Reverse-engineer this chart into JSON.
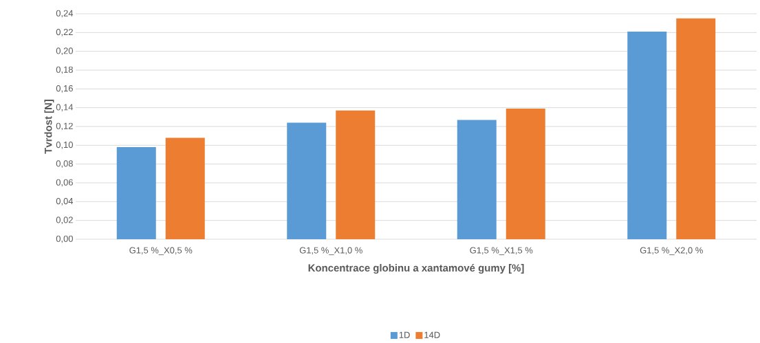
{
  "chart_data": {
    "type": "bar",
    "xlabel": "**Koncentrace globinu a xantamové gumy [**%**]**",
    "ylabel": "Tvrdost [N]",
    "categories": [
      "G1,5 %_X0,5 %",
      "G1,5 %_X1,0 %",
      "G1,5 %_X1,5 %",
      "G1,5 %_X2,0 %"
    ],
    "series": [
      {
        "name": "1D",
        "color": "#5b9bd5",
        "values": [
          0.098,
          0.124,
          0.127,
          0.221
        ]
      },
      {
        "name": "14D",
        "color": "#ed7d31",
        "values": [
          0.108,
          0.137,
          0.139,
          0.235
        ]
      }
    ],
    "ylim": [
      0,
      0.24
    ],
    "yticks": [
      {
        "value": 0,
        "label": "0,00"
      },
      {
        "value": 0.02,
        "label": "0,02"
      },
      {
        "value": 0.04,
        "label": "0,04"
      },
      {
        "value": 0.06,
        "label": "0,06"
      },
      {
        "value": 0.08,
        "label": "0,08"
      },
      {
        "value": 0.1,
        "label": "0,10"
      },
      {
        "value": 0.12,
        "label": "0,12"
      },
      {
        "value": 0.14,
        "label": "0,14"
      },
      {
        "value": 0.16,
        "label": "0,16"
      },
      {
        "value": 0.18,
        "label": "0,18"
      },
      {
        "value": 0.2,
        "label": "0,20"
      },
      {
        "value": 0.22,
        "label": "0,22"
      },
      {
        "value": 0.24,
        "label": "0,24"
      }
    ],
    "grid": "y",
    "legend": "bottom"
  }
}
